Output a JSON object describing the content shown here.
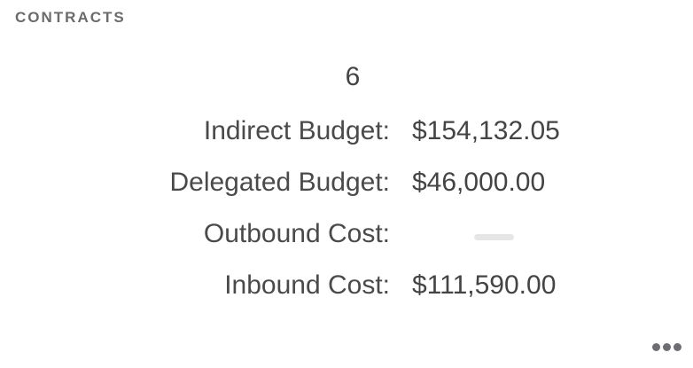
{
  "card": {
    "title": "CONTRACTS",
    "count": "6",
    "rows": [
      {
        "label": "Indirect Budget:",
        "value": "$154,132.05"
      },
      {
        "label": "Delegated Budget:",
        "value": "$46,000.00"
      },
      {
        "label": "Outbound Cost:",
        "value": null
      },
      {
        "label": "Inbound Cost:",
        "value": "$111,590.00"
      }
    ],
    "more_icon": "ellipsis-horizontal-icon",
    "colors": {
      "text": "#444444",
      "title": "#6b6b6b",
      "placeholder": "#e6e6e6"
    }
  }
}
